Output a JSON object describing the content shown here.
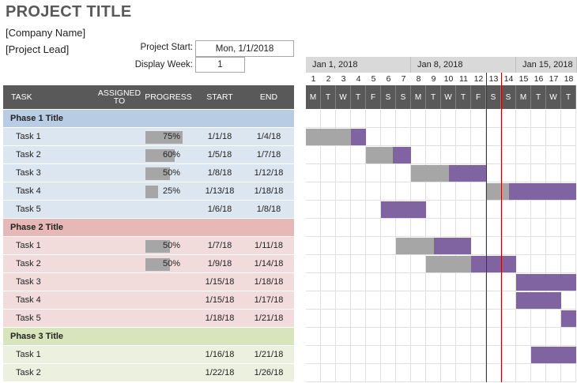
{
  "header": {
    "title": "PROJECT TITLE",
    "company": "[Company Name]",
    "lead": "[Project Lead]",
    "project_start_label": "Project Start:",
    "project_start_value": "Mon, 1/1/2018",
    "display_week_label": "Display Week:",
    "display_week_value": "1"
  },
  "columns": {
    "task": "TASK",
    "assigned": "ASSIGNED TO",
    "progress": "PROGRESS",
    "start": "START",
    "end": "END"
  },
  "timeline": {
    "weeks": [
      "Jan 1, 2018",
      "Jan 8, 2018",
      "Jan 15, 2018"
    ],
    "day_numbers": [
      "1",
      "2",
      "3",
      "4",
      "5",
      "6",
      "7",
      "8",
      "9",
      "10",
      "11",
      "12",
      "13",
      "14",
      "15",
      "16",
      "17",
      "18"
    ],
    "day_letters": [
      "M",
      "T",
      "W",
      "T",
      "F",
      "S",
      "S",
      "M",
      "T",
      "W",
      "T",
      "F",
      "S",
      "S",
      "M",
      "T",
      "W",
      "T"
    ],
    "today_index": 12
  },
  "colors": {
    "header_bg": "#595959",
    "phase1_title": "#b8cce4",
    "phase1_row": "#dce6f1",
    "phase2_title": "#e6b8b7",
    "phase2_row": "#f2dcdb",
    "phase3_title": "#d8e4bc",
    "phase3_row": "#ebf1de",
    "done": "#a6a6a6",
    "todo": "#8064a2",
    "today": "#c00000"
  },
  "rows": [
    {
      "type": "phase",
      "phase": 1,
      "task": "Phase 1 Title"
    },
    {
      "type": "task",
      "phase": 1,
      "task": "Task 1",
      "progress": "75%",
      "pct": 0.75,
      "start": "1/1/18",
      "end": "1/4/18",
      "s": 1,
      "e": 4
    },
    {
      "type": "task",
      "phase": 1,
      "task": "Task 2",
      "progress": "60%",
      "pct": 0.6,
      "start": "1/5/18",
      "end": "1/7/18",
      "s": 5,
      "e": 7
    },
    {
      "type": "task",
      "phase": 1,
      "task": "Task 3",
      "progress": "50%",
      "pct": 0.5,
      "start": "1/8/18",
      "end": "1/12/18",
      "s": 8,
      "e": 12
    },
    {
      "type": "task",
      "phase": 1,
      "task": "Task 4",
      "progress": "25%",
      "pct": 0.25,
      "start": "1/13/18",
      "end": "1/18/18",
      "s": 13,
      "e": 18
    },
    {
      "type": "task",
      "phase": 1,
      "task": "Task 5",
      "progress": "",
      "pct": 0,
      "start": "1/6/18",
      "end": "1/8/18",
      "s": 6,
      "e": 8
    },
    {
      "type": "phase",
      "phase": 2,
      "task": "Phase 2 Title"
    },
    {
      "type": "task",
      "phase": 2,
      "task": "Task 1",
      "progress": "50%",
      "pct": 0.5,
      "start": "1/7/18",
      "end": "1/11/18",
      "s": 7,
      "e": 11
    },
    {
      "type": "task",
      "phase": 2,
      "task": "Task 2",
      "progress": "50%",
      "pct": 0.5,
      "start": "1/9/18",
      "end": "1/14/18",
      "s": 9,
      "e": 14
    },
    {
      "type": "task",
      "phase": 2,
      "task": "Task 3",
      "progress": "",
      "pct": 0,
      "start": "1/15/18",
      "end": "1/18/18",
      "s": 15,
      "e": 18
    },
    {
      "type": "task",
      "phase": 2,
      "task": "Task 4",
      "progress": "",
      "pct": 0,
      "start": "1/15/18",
      "end": "1/17/18",
      "s": 15,
      "e": 17
    },
    {
      "type": "task",
      "phase": 2,
      "task": "Task 5",
      "progress": "",
      "pct": 0,
      "start": "1/18/18",
      "end": "1/21/18",
      "s": 18,
      "e": 21
    },
    {
      "type": "phase",
      "phase": 3,
      "task": "Phase 3 Title"
    },
    {
      "type": "task",
      "phase": 3,
      "task": "Task 1",
      "progress": "",
      "pct": 0,
      "start": "1/16/18",
      "end": "1/21/18",
      "s": 16,
      "e": 21
    },
    {
      "type": "task",
      "phase": 3,
      "task": "Task 2",
      "progress": "",
      "pct": 0,
      "start": "1/22/18",
      "end": "1/26/18",
      "s": 22,
      "e": 26
    }
  ]
}
